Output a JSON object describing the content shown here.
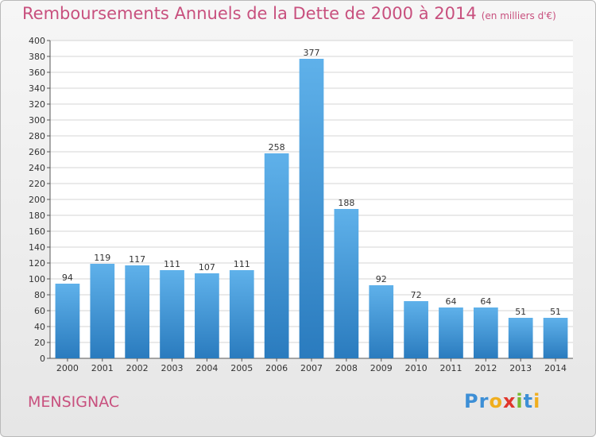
{
  "header": {
    "title": "Remboursements Annuels de la Dette de 2000 à 2014",
    "subtitle": "(en milliers d'€)"
  },
  "footer": {
    "city": "MENSIGNAC",
    "logo_letters": [
      "P",
      "r",
      "o",
      "x",
      "i",
      "t",
      "i"
    ]
  },
  "colors": {
    "title": "#c8507e",
    "bar_light": "#5fb1ea",
    "bar_dark": "#2a7bbe",
    "grid": "#d4d4d4",
    "logo": [
      "#3d8fd6",
      "#3d8fd6",
      "#f0ae1e",
      "#e0362c",
      "#7ab931",
      "#3d8fd6",
      "#f0ae1e"
    ]
  },
  "chart_data": {
    "type": "bar",
    "title": "Remboursements Annuels de la Dette de 2000 à 2014",
    "subtitle": "(en milliers d'€)",
    "categories": [
      "2000",
      "2001",
      "2002",
      "2003",
      "2004",
      "2005",
      "2006",
      "2007",
      "2008",
      "2009",
      "2010",
      "2011",
      "2012",
      "2013",
      "2014"
    ],
    "values": [
      94,
      119,
      117,
      111,
      107,
      111,
      258,
      377,
      188,
      92,
      72,
      64,
      64,
      51,
      51
    ],
    "ylim": [
      0,
      400
    ],
    "ytick_step": 20,
    "grid": true
  }
}
